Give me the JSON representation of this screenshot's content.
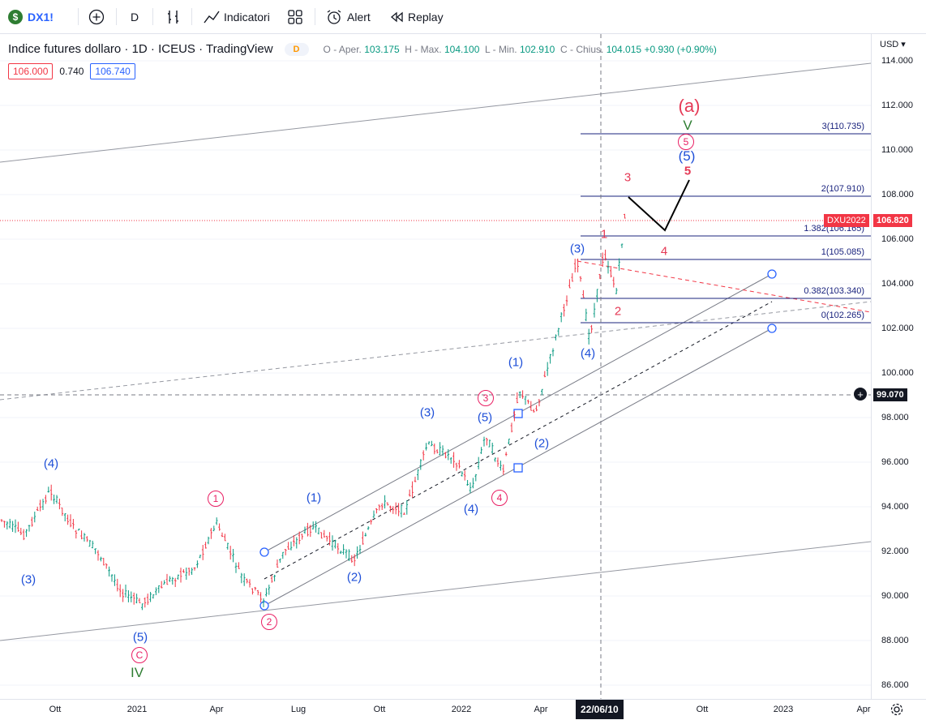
{
  "toolbar": {
    "symbol": "DX1!",
    "interval": "D",
    "indicators_label": "Indicatori",
    "alert_label": "Alert",
    "replay_label": "Replay"
  },
  "legend": {
    "title": "Indice futures dollaro · 1D · ICEUS · TradingView",
    "badge": "D",
    "open_label": "O - Aper.",
    "open": "103.175",
    "high_label": "H - Max.",
    "high": "104.100",
    "low_label": "L - Min.",
    "low": "102.910",
    "close_label": "C - Chius.",
    "close": "104.015",
    "change": "+0.930 (+0.90%)"
  },
  "prices": {
    "sell": "106.000",
    "spread": "0.740",
    "buy": "106.740"
  },
  "axis": {
    "currency": "USD",
    "y_labels": [
      "114.000",
      "112.000",
      "110.000",
      "108.000",
      "106.000",
      "104.000",
      "102.000",
      "100.000",
      "98.000",
      "96.000",
      "94.000",
      "92.000",
      "90.000",
      "88.000",
      "86.000"
    ],
    "x_labels": [
      "Ott",
      "2021",
      "Apr",
      "Lug",
      "Ott",
      "2022",
      "Apr",
      "Ott",
      "2023",
      "Apr"
    ],
    "cursor_date": "22/06/10",
    "cursor_price": "99.070",
    "last_symbol": "DXU2022",
    "last_price": "106.820"
  },
  "fib_levels": [
    "3(110.735)",
    "2(107.910)",
    "1.382(106.165)",
    "1(105.085)",
    "0.382(103.340)",
    "0(102.265)"
  ],
  "waves": {
    "blue": [
      "(4)",
      "(3)",
      "(5)",
      "(1)",
      "(2)",
      "(3)",
      "(4)",
      "(5)",
      "(2)",
      "(1)",
      "(3)",
      "(4)",
      "(5)"
    ],
    "pink_circled": [
      "1",
      "2",
      "3",
      "4",
      "5",
      "C"
    ],
    "red": [
      "3",
      "1",
      "2",
      "4",
      "5"
    ],
    "green": [
      "IV",
      "V"
    ],
    "top": "(a)"
  },
  "colors": {
    "up": "#089981",
    "down": "#f23645",
    "accent": "#2962ff",
    "blue_wave": "#1e4fd8",
    "pink": "#e91e63",
    "green": "#2e7d32"
  }
}
